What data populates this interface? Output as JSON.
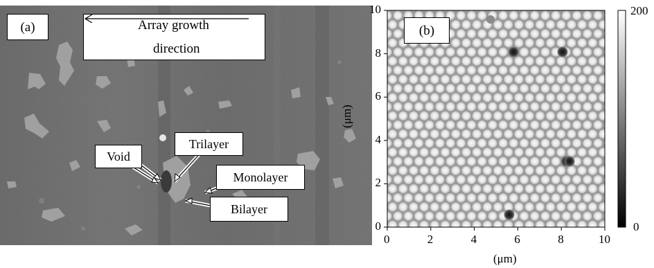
{
  "panel_a": {
    "label": "(a)",
    "growth_direction": {
      "line1": "Array growth",
      "line2": "direction"
    },
    "annotations": {
      "void": "Void",
      "trilayer": "Trilayer",
      "monolayer": "Monolayer",
      "bilayer": "Bilayer"
    }
  },
  "panel_b": {
    "label": "(b)",
    "y_ticks": [
      "0",
      "2",
      "4",
      "6",
      "8",
      "10"
    ],
    "x_ticks": [
      "0",
      "2",
      "4",
      "6",
      "8",
      "10"
    ],
    "y_title": "(μm)",
    "x_title": "(μm)",
    "colorbar": {
      "max": "200",
      "min": "0"
    }
  }
}
